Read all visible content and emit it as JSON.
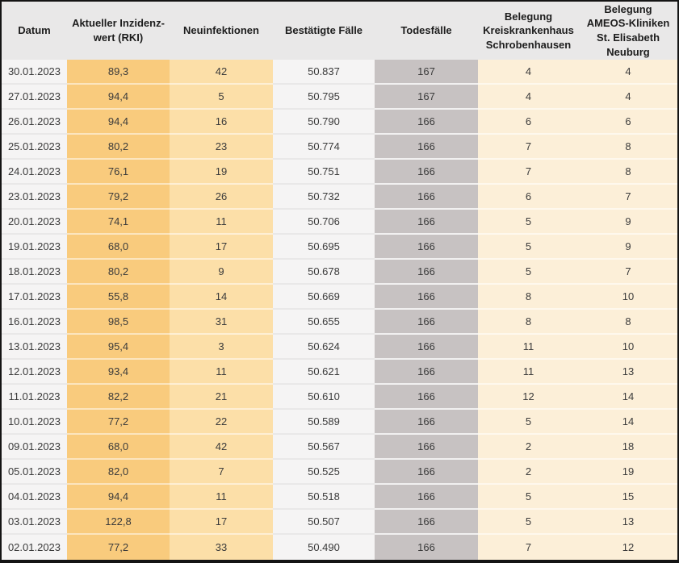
{
  "chart_data": {
    "type": "table",
    "columns": [
      "Datum",
      "Aktueller Inzidenz-\nwert (RKI)",
      "Neuinfektionen",
      "Bestätigte Fälle",
      "Todesfälle",
      "Belegung\nKreiskrankenhaus\nSchrobenhausen",
      "Belegung\nAMEOS-Kliniken\nSt. Elisabeth\nNeuburg"
    ],
    "rows": [
      [
        "30.01.2023",
        "89,3",
        "42",
        "50.837",
        "167",
        "4",
        "4"
      ],
      [
        "27.01.2023",
        "94,4",
        "5",
        "50.795",
        "167",
        "4",
        "4"
      ],
      [
        "26.01.2023",
        "94,4",
        "16",
        "50.790",
        "166",
        "6",
        "6"
      ],
      [
        "25.01.2023",
        "80,2",
        "23",
        "50.774",
        "166",
        "7",
        "8"
      ],
      [
        "24.01.2023",
        "76,1",
        "19",
        "50.751",
        "166",
        "7",
        "8"
      ],
      [
        "23.01.2023",
        "79,2",
        "26",
        "50.732",
        "166",
        "6",
        "7"
      ],
      [
        "20.01.2023",
        "74,1",
        "11",
        "50.706",
        "166",
        "5",
        "9"
      ],
      [
        "19.01.2023",
        "68,0",
        "17",
        "50.695",
        "166",
        "5",
        "9"
      ],
      [
        "18.01.2023",
        "80,2",
        "9",
        "50.678",
        "166",
        "5",
        "7"
      ],
      [
        "17.01.2023",
        "55,8",
        "14",
        "50.669",
        "166",
        "8",
        "10"
      ],
      [
        "16.01.2023",
        "98,5",
        "31",
        "50.655",
        "166",
        "8",
        "8"
      ],
      [
        "13.01.2023",
        "95,4",
        "3",
        "50.624",
        "166",
        "11",
        "10"
      ],
      [
        "12.01.2023",
        "93,4",
        "11",
        "50.621",
        "166",
        "11",
        "13"
      ],
      [
        "11.01.2023",
        "82,2",
        "21",
        "50.610",
        "166",
        "12",
        "14"
      ],
      [
        "10.01.2023",
        "77,2",
        "22",
        "50.589",
        "166",
        "5",
        "14"
      ],
      [
        "09.01.2023",
        "68,0",
        "42",
        "50.567",
        "166",
        "2",
        "18"
      ],
      [
        "05.01.2023",
        "82,0",
        "7",
        "50.525",
        "166",
        "2",
        "19"
      ],
      [
        "04.01.2023",
        "94,4",
        "11",
        "50.518",
        "166",
        "5",
        "15"
      ],
      [
        "03.01.2023",
        "122,8",
        "17",
        "50.507",
        "166",
        "5",
        "13"
      ],
      [
        "02.01.2023",
        "77,2",
        "33",
        "50.490",
        "166",
        "7",
        "12"
      ]
    ],
    "title": "",
    "layout": {
      "grid": false,
      "legend": "none"
    }
  },
  "colors": {
    "header_bg": "#e9e8e8",
    "light_column_bg": "#f5f4f4",
    "incidence_column_bg": "#f9cb7d",
    "new_infections_column_bg": "#fcdfa8",
    "deaths_column_bg": "#c7c2c2",
    "hospital_columns_bg": "#fcefd8",
    "frame_border": "#141414",
    "header_text": "#1d1d1d",
    "cell_text": "#3b3b3b"
  }
}
